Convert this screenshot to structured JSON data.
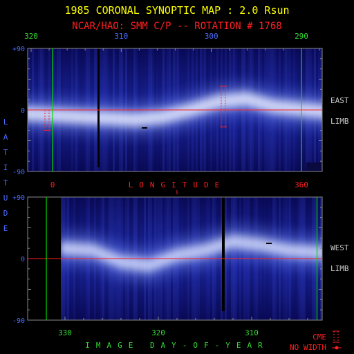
{
  "header": {
    "title": "1985 CORONAL SYNOPTIC MAP : 2.0 Rsun",
    "subtitle": "NCAR/HAO: SMM C/P -- ROTATION # 1768"
  },
  "colors": {
    "title": "#ffff00",
    "subtitle": "#ff2020",
    "axis_labels_blue": "#4a6cff",
    "axis_labels_green": "#33dd33",
    "gridline_green": "#00dd00",
    "equator_red": "#ff2020",
    "frame": "#8a8a8a",
    "cme_marker": "#ff2020"
  },
  "chart_data": [
    {
      "type": "heatmap",
      "panel": "east-limb",
      "title": "",
      "top_axis": {
        "ticks": [
          "320",
          "310",
          "300",
          "290"
        ],
        "values": [
          320,
          310,
          300,
          290
        ]
      },
      "bottom_axis": {
        "label": "LONGITUDE",
        "ticks": [
          "0",
          "360"
        ],
        "values": [
          0,
          360
        ]
      },
      "y_axis": {
        "label": "LATITUDE",
        "ticks": [
          "+90",
          "0",
          "-90"
        ],
        "values": [
          90,
          0,
          -90
        ]
      },
      "side_label": [
        "EAST",
        "LIMB"
      ],
      "green_lines_longitude": [
        0,
        360
      ],
      "bright_band_latitude_by_longitude": {
        "longitude": [
          0,
          40,
          80,
          120,
          160,
          200,
          240,
          280,
          320,
          360
        ],
        "latitude": [
          -5,
          -10,
          -12,
          -14,
          -10,
          0,
          12,
          16,
          5,
          -3
        ]
      },
      "cme_markers": [
        {
          "longitude": -8,
          "lat_range": [
            -30,
            0
          ]
        },
        {
          "longitude": 247,
          "lat_range": [
            -25,
            35
          ]
        }
      ]
    },
    {
      "type": "heatmap",
      "panel": "west-limb",
      "title": "",
      "x_axis": {
        "label": "IMAGE DAY-OF-YEAR",
        "ticks": [
          "330",
          "320",
          "310"
        ],
        "values": [
          330,
          320,
          310
        ]
      },
      "y_axis": {
        "label": "LATITUDE",
        "ticks": [
          "+90",
          "0",
          "-90"
        ],
        "values": [
          90,
          0,
          -90
        ]
      },
      "side_label": [
        "WEST",
        "LIMB"
      ],
      "green_lines_day": [
        332,
        303
      ],
      "bright_band_latitude_by_day": {
        "day": [
          330,
          327,
          324,
          321,
          318,
          315,
          312,
          309,
          306,
          304
        ],
        "latitude": [
          15,
          12,
          -5,
          -10,
          5,
          12,
          25,
          20,
          12,
          8
        ]
      }
    }
  ],
  "legend": {
    "cme_label": "CME",
    "no_width_label": "NO WIDTH"
  }
}
